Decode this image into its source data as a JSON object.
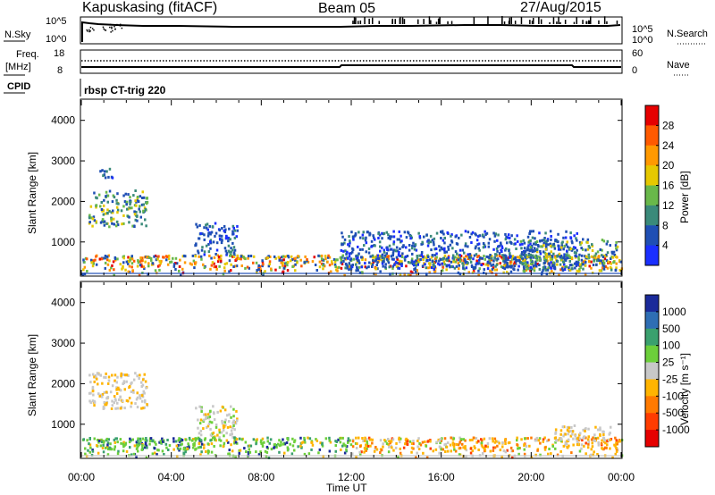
{
  "header": {
    "station": "Kapuskasing (fitACF)",
    "beam": "Beam 05",
    "date": "27/Aug/2015"
  },
  "strip_panels": {
    "nsky": {
      "left_label": "N.Sky",
      "left_ticks": [
        "10^5",
        "10^0"
      ],
      "right_label": "N.Search",
      "right_ticks": [
        "10^5",
        "10^0"
      ]
    },
    "freq": {
      "left_label": "Freq.",
      "left_unit": "[MHz]",
      "left_ticks": [
        "18",
        "8"
      ],
      "right_label": "Nave",
      "right_ticks": [
        "60",
        "0"
      ]
    },
    "cpid": {
      "label": "CPID",
      "value": "rbsp CT-trig 220"
    }
  },
  "chart_data": [
    {
      "type": "heatmap",
      "panel": "power",
      "ylabel": "Slant Range [km]",
      "ylim": [
        180,
        4500
      ],
      "yticks": [
        1000,
        2000,
        3000,
        4000
      ],
      "xlim_hours": [
        0,
        24
      ],
      "colorbar": {
        "label": "Power [dB]",
        "tick_labels": [
          "28",
          "24",
          "20",
          "16",
          "12",
          "8",
          "4"
        ],
        "colors": [
          "#e60000",
          "#ff5a00",
          "#ff9900",
          "#e6c800",
          "#69b84a",
          "#3a8a7a",
          "#1f4fb4",
          "#1a2fff"
        ]
      },
      "echo_regions": [
        {
          "t": [
            0.3,
            2.9
          ],
          "range_km": [
            1400,
            2300
          ],
          "level": "low-mid"
        },
        {
          "t": [
            0.8,
            1.4
          ],
          "range_km": [
            2550,
            2850
          ],
          "level": "low"
        },
        {
          "t": [
            5.0,
            6.9
          ],
          "range_km": [
            700,
            1500
          ],
          "level": "low"
        },
        {
          "t": [
            0.0,
            24.0
          ],
          "range_km": [
            200,
            700
          ],
          "level": "mid-high"
        },
        {
          "t": [
            11.5,
            22.0
          ],
          "range_km": [
            350,
            1300
          ],
          "level": "low"
        },
        {
          "t": [
            19.5,
            23.8
          ],
          "range_km": [
            300,
            1100
          ],
          "level": "low-mid"
        }
      ]
    },
    {
      "type": "heatmap",
      "panel": "velocity",
      "ylabel": "Slant Range [km]",
      "ylim": [
        180,
        4500
      ],
      "yticks": [
        1000,
        2000,
        3000,
        4000
      ],
      "xlim_hours": [
        0,
        24
      ],
      "xlabel": "Time UT",
      "xticks": [
        "00:00",
        "04:00",
        "08:00",
        "12:00",
        "16:00",
        "20:00",
        "00:00"
      ],
      "colorbar": {
        "label": "Velocity [m s⁻¹]",
        "tick_labels": [
          "1000",
          "500",
          "100",
          "25",
          "-25",
          "-100",
          "-500",
          "-1000"
        ],
        "colors": [
          "#1a2a9a",
          "#2e6eb4",
          "#3aa06e",
          "#6ccf3a",
          "#c8c8c8",
          "#ffb400",
          "#ff7a00",
          "#ff3c00",
          "#e60000"
        ]
      },
      "echo_regions": [
        {
          "t": [
            0.3,
            2.9
          ],
          "range_km": [
            1400,
            2300
          ],
          "level": "grey"
        },
        {
          "t": [
            5.0,
            6.9
          ],
          "range_km": [
            700,
            1500
          ],
          "level": "grey-green"
        },
        {
          "t": [
            0.0,
            12.0
          ],
          "range_km": [
            200,
            700
          ],
          "level": "green"
        },
        {
          "t": [
            12.0,
            24.0
          ],
          "range_km": [
            200,
            700
          ],
          "level": "orange"
        },
        {
          "t": [
            21.0,
            23.5
          ],
          "range_km": [
            600,
            1000
          ],
          "level": "grey"
        }
      ]
    }
  ]
}
